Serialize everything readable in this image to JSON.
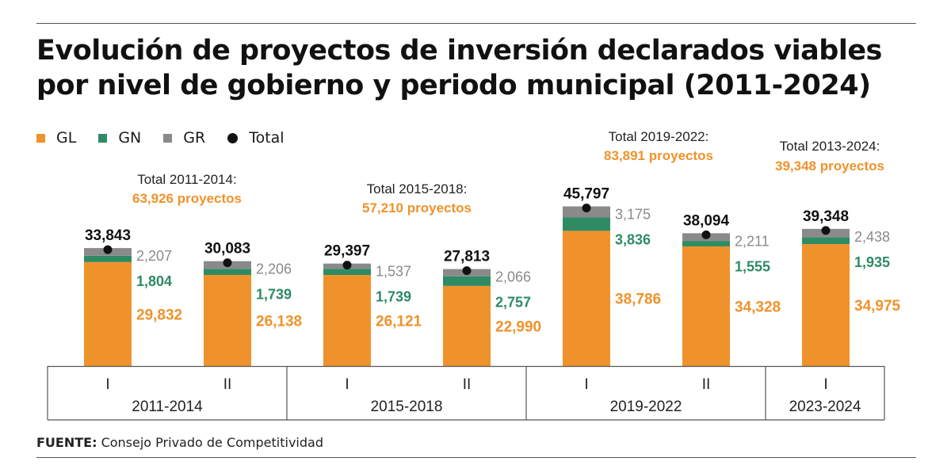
{
  "title_line1": "Evolución de proyectos de inversión declarados viables",
  "title_line2": "por nivel de gobierno y periodo municipal (2011-2024)",
  "source_label": "FUENTE:",
  "source_text": "Consejo Privado de Competitividad",
  "chart_data": {
    "type": "bar",
    "stacked": true,
    "legend": [
      {
        "key": "GL",
        "label": "GL",
        "color": "#f0922b"
      },
      {
        "key": "GN",
        "label": "GN",
        "color": "#2e8b64"
      },
      {
        "key": "GR",
        "label": "GR",
        "color": "#8a8a8a"
      },
      {
        "key": "Total",
        "label": "Total",
        "color": "#111111"
      }
    ],
    "categories": [
      "I",
      "II",
      "I",
      "II",
      "I",
      "II",
      "I"
    ],
    "groups": [
      {
        "label": "2011-2014",
        "bars": [
          0,
          1
        ],
        "note_line1": "Total 2011-2014:",
        "note_line2": "63,926 proyectos"
      },
      {
        "label": "2015-2018",
        "bars": [
          2,
          3
        ],
        "note_line1": "Total 2015-2018:",
        "note_line2": "57,210 proyectos"
      },
      {
        "label": "2019-2022",
        "bars": [
          4,
          5
        ],
        "note_line1": "Total 2019-2022:",
        "note_line2": "83,891 proyectos"
      },
      {
        "label": "2023-2024",
        "bars": [
          6
        ],
        "note_line1": "Total 2013-2024:",
        "note_line2": "39,348 proyectos"
      }
    ],
    "series": [
      {
        "name": "GL",
        "color": "#f0922b",
        "values": [
          29832,
          26138,
          26121,
          22990,
          38786,
          34328,
          34975
        ],
        "labels": [
          "29,832",
          "26,138",
          "26,121",
          "22,990",
          "38,786",
          "34,328",
          "34,975"
        ]
      },
      {
        "name": "GN",
        "color": "#2e8b64",
        "values": [
          1804,
          1739,
          1739,
          2757,
          3836,
          1555,
          1935
        ],
        "labels": [
          "1,804",
          "1,739",
          "1,739",
          "2,757",
          "3,836",
          "1,555",
          "1,935"
        ]
      },
      {
        "name": "GR",
        "color": "#8a8a8a",
        "values": [
          2207,
          2206,
          1537,
          2066,
          3175,
          2211,
          2438
        ],
        "labels": [
          "2,207",
          "2,206",
          "1,537",
          "2,066",
          "3,175",
          "2,211",
          "2,438"
        ]
      }
    ],
    "totals": [
      33843,
      30083,
      29397,
      27813,
      45797,
      38094,
      39348
    ],
    "total_labels": [
      "33,843",
      "30,083",
      "29,397",
      "27,813",
      "45,797",
      "38,094",
      "39,348"
    ],
    "ylim": [
      0,
      46000
    ],
    "grid": false
  }
}
